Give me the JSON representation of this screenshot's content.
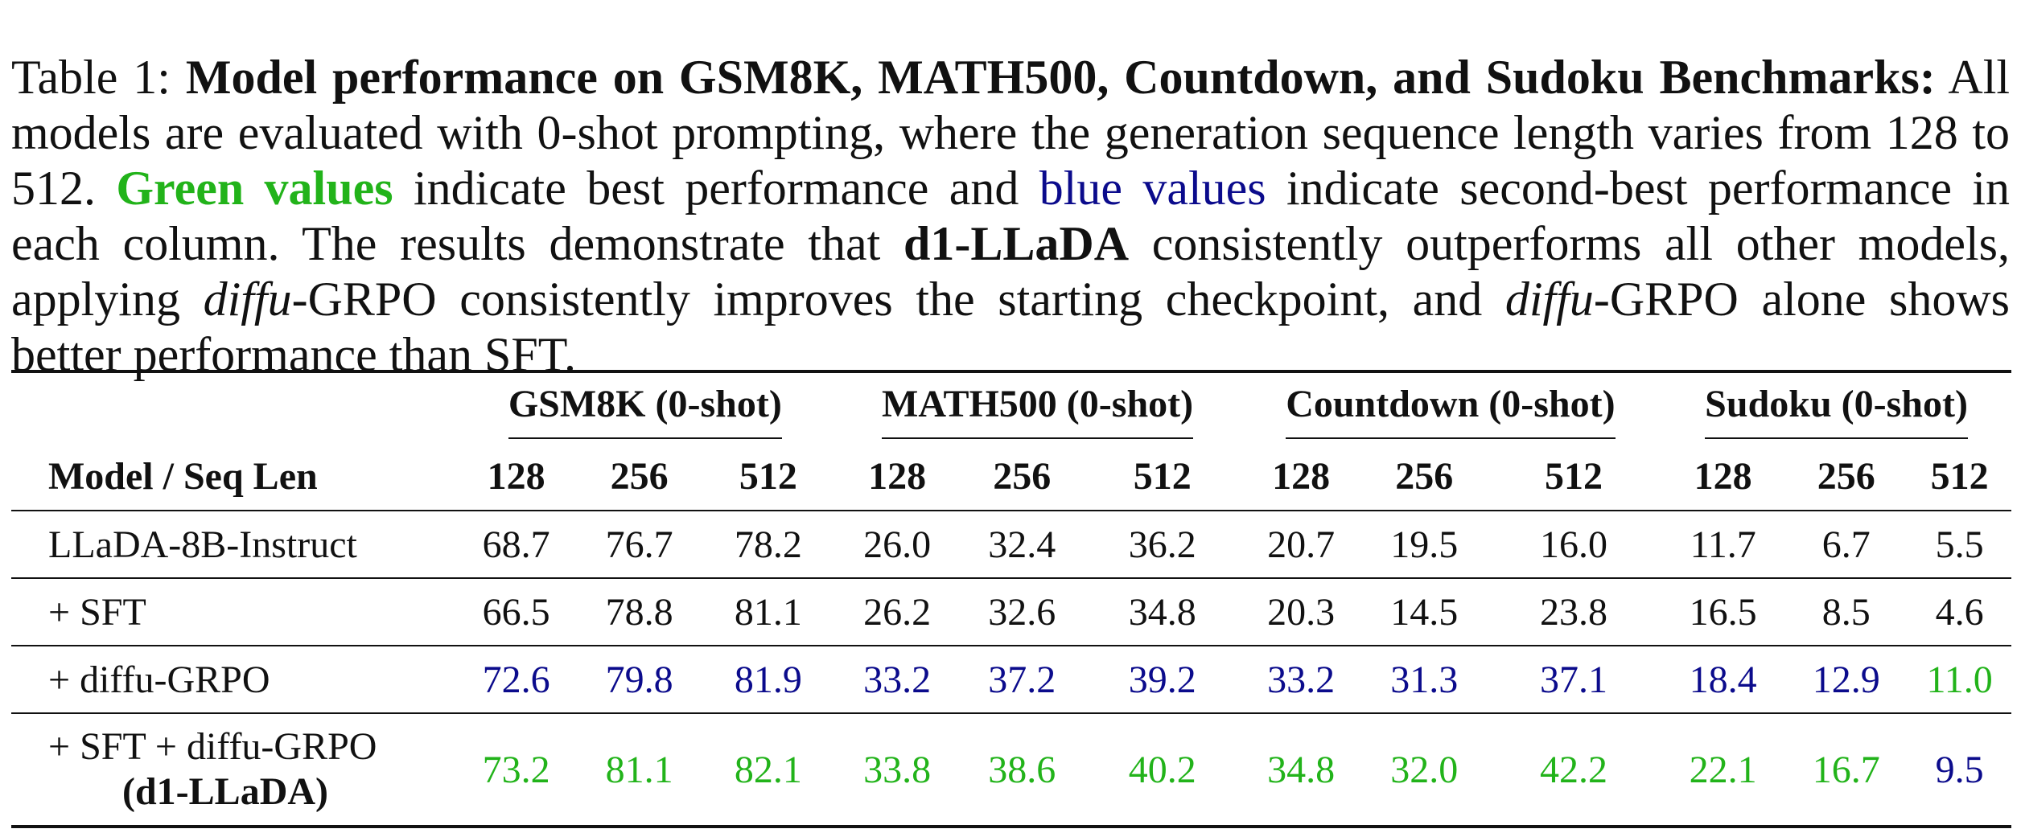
{
  "caption": {
    "label": "Table 1:",
    "title": "Model performance on GSM8K, MATH500, Countdown, and Sudoku Benchmarks:",
    "text1": "All models are evaluated with 0-shot prompting, where the generation sequence length varies from 128 to 512.",
    "green_phrase": "Green values",
    "text2": "indicate best performance and",
    "blue_phrase": "blue values",
    "text3": "indicate second-best performance in each column. The results demonstrate that",
    "model_name": "d1-LLaDA",
    "text4": "consistently outperforms all other models, applying",
    "diffu1": "diffu",
    "text5": "-GRPO consistently improves the starting checkpoint, and",
    "diffu2": "diffu",
    "text6": "-GRPO alone shows better performance than SFT."
  },
  "table": {
    "model_header": "Model / Seq Len",
    "benchmarks": [
      "GSM8K (0-shot)",
      "MATH500 (0-shot)",
      "Countdown (0-shot)",
      "Sudoku (0-shot)"
    ],
    "seq_lens": [
      "128",
      "256",
      "512"
    ],
    "rows": [
      {
        "model": "LLaDA-8B-Instruct",
        "values": [
          "68.7",
          "76.7",
          "78.2",
          "26.0",
          "32.4",
          "36.2",
          "20.7",
          "19.5",
          "16.0",
          "11.7",
          "6.7",
          "5.5"
        ]
      },
      {
        "model": "+ SFT",
        "values": [
          "66.5",
          "78.8",
          "81.1",
          "26.2",
          "32.6",
          "34.8",
          "20.3",
          "14.5",
          "23.8",
          "16.5",
          "8.5",
          "4.6"
        ]
      },
      {
        "model": "+ diffu-GRPO",
        "values": [
          "72.6",
          "79.8",
          "81.9",
          "33.2",
          "37.2",
          "39.2",
          "33.2",
          "31.3",
          "37.1",
          "18.4",
          "12.9",
          "11.0"
        ]
      },
      {
        "model": "+ SFT + diffu-GRPO",
        "model_line2": "(d1-LLaDA)",
        "values": [
          "73.2",
          "81.1",
          "82.1",
          "33.8",
          "38.6",
          "40.2",
          "34.8",
          "32.0",
          "42.2",
          "22.1",
          "16.7",
          "9.5"
        ]
      }
    ],
    "highlight_colors": {
      "best": "#22b31a",
      "second_best": "#0b0b8c"
    }
  }
}
